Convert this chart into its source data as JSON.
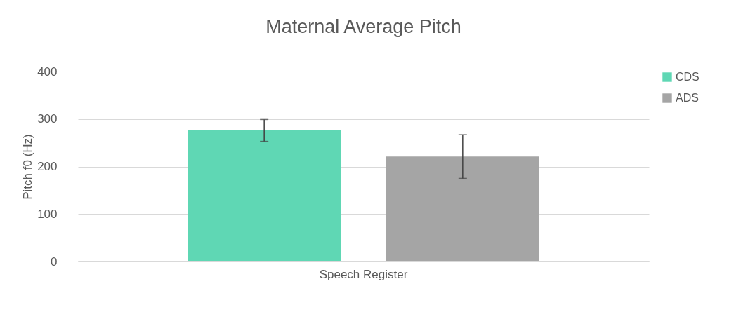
{
  "chart_data": {
    "type": "bar",
    "title": "Maternal Average Pitch",
    "ylabel": "Pitch f0 (Hz)",
    "categories": [
      "Speech Register"
    ],
    "series": [
      {
        "name": "CDS",
        "color": "#5fd7b4",
        "values": [
          276
        ],
        "errors": [
          23
        ]
      },
      {
        "name": "ADS",
        "color": "#a5a5a5",
        "values": [
          221
        ],
        "errors": [
          46
        ]
      }
    ],
    "ylim": [
      0,
      400
    ],
    "yticks": [
      0,
      100,
      200,
      300,
      400
    ],
    "grid": "y",
    "legend": "right"
  }
}
